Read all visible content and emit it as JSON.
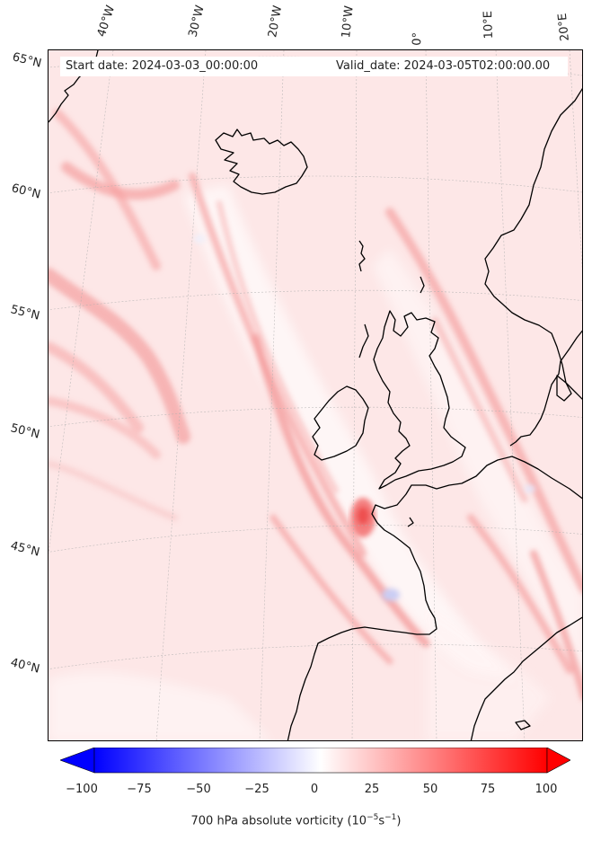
{
  "map": {
    "start_date": "Start date: 2024-03-03_00:00:00",
    "valid_date": "Valid_date: 2024-03-05T02:00:00.00",
    "lon_labels": [
      "40°W",
      "30°W",
      "20°W",
      "10°W",
      "0°",
      "10°E",
      "20°E"
    ],
    "lat_labels": [
      "65°N",
      "60°N",
      "55°N",
      "50°N",
      "45°N",
      "40°N"
    ],
    "field": "700 hPa absolute vorticity",
    "coastline_color": "#000000",
    "gridline_color": "#b0b0b0"
  },
  "colorbar": {
    "ticks": [
      "−100",
      "−75",
      "−50",
      "−25",
      "0",
      "25",
      "50",
      "75",
      "100"
    ],
    "min": -100,
    "max": 100,
    "low_color": "#0000ff",
    "mid_color": "#ffffff",
    "high_color": "#ff0000",
    "label": "700 hPa absolute vorticity (10$^{-5}$s$^{-1}$)",
    "label_unit_base": "700 hPa absolute vorticity (10",
    "label_exp1": "−5",
    "label_mid": "s",
    "label_exp2": "−1",
    "label_end": ")"
  }
}
